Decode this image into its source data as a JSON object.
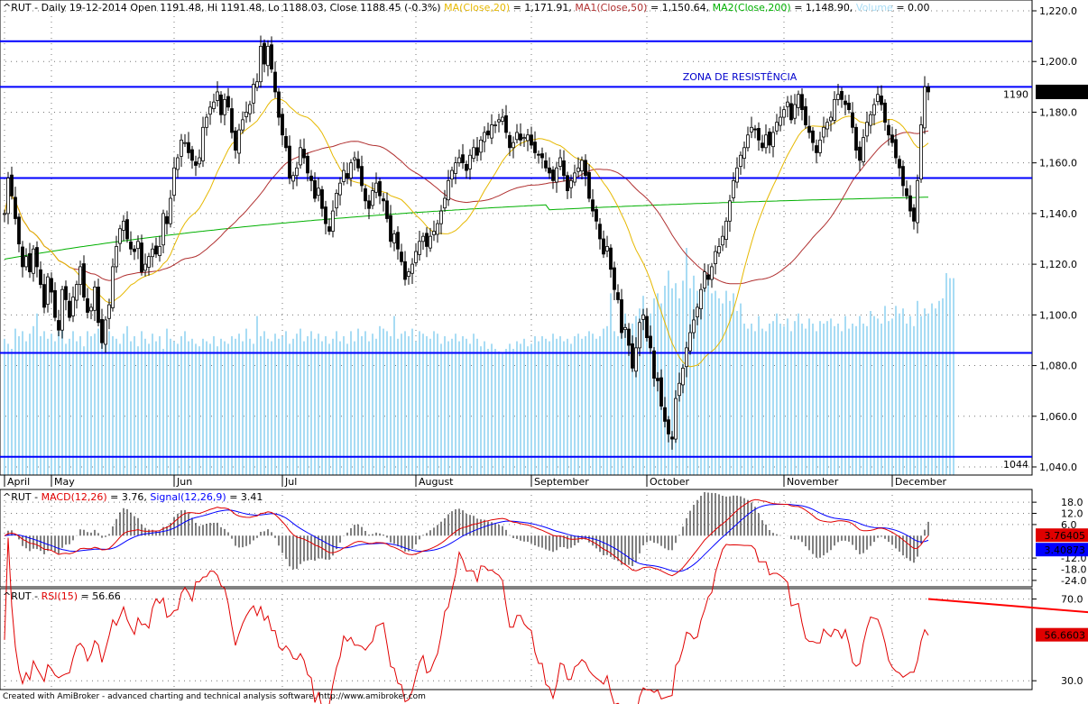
{
  "chart_data": [
    {
      "type": "candlestick",
      "title_parts": {
        "symbol_line": "^RUT - Daily 19-12-2014 Open 1191.48, Hi 1191.48, Lo 1188.03, Close 1188.45 (-0.3%)",
        "ma20_label": "MA(Close,20)",
        "ma20_value": "= 1,171.91,",
        "ma50_label": "MA1(Close,50)",
        "ma50_value": "= 1,150.64,",
        "ma200_label": "MA2(Close,200)",
        "ma200_value": "= 1,148.90,",
        "volume_label": "Volume",
        "volume_value": "= 0.00"
      },
      "colors": {
        "ma20": "#e6b800",
        "ma50": "#b03030",
        "ma200": "#00b000",
        "volume": "#a8dcf4",
        "lines": "#0000ff",
        "annotation": "#0000cc"
      },
      "ylim": [
        1040,
        1220
      ],
      "y_ticks": [
        "1,220.0",
        "1,200.0",
        "1,180.0",
        "1,160.0",
        "1,140.0",
        "1,120.0",
        "1,100.0",
        "1,080.0",
        "1,060.0",
        "1,040.0"
      ],
      "y_tick_values": [
        1220,
        1200,
        1180,
        1160,
        1140,
        1120,
        1100,
        1080,
        1060,
        1040
      ],
      "months": [
        {
          "label": "April",
          "i": 0
        },
        {
          "label": "May",
          "i": 13
        },
        {
          "label": "Jun",
          "i": 47
        },
        {
          "label": "Jul",
          "i": 77
        },
        {
          "label": "August",
          "i": 114
        },
        {
          "label": "September",
          "i": 146
        },
        {
          "label": "October",
          "i": 178
        },
        {
          "label": "November",
          "i": 216
        },
        {
          "label": "December",
          "i": 246
        }
      ],
      "horizontal_lines": [
        1208,
        1190,
        1154,
        1085,
        1044
      ],
      "line_labels": [
        {
          "value": 1190,
          "text": "1190"
        },
        {
          "value": 1044,
          "text": "1044"
        }
      ],
      "annotation": "ZONA DE RESISTÊNCIA",
      "last_price": "1,188.45",
      "closes": [
        1140,
        1154,
        1147,
        1138,
        1128,
        1119,
        1123,
        1117,
        1126,
        1119,
        1112,
        1103,
        1115,
        1109,
        1099,
        1094,
        1110,
        1106,
        1099,
        1107,
        1112,
        1119,
        1107,
        1101,
        1103,
        1111,
        1097,
        1089,
        1098,
        1104,
        1119,
        1127,
        1134,
        1137,
        1130,
        1126,
        1125,
        1129,
        1117,
        1120,
        1123,
        1126,
        1124,
        1127,
        1140,
        1136,
        1146,
        1158,
        1162,
        1169,
        1168,
        1164,
        1161,
        1159,
        1162,
        1174,
        1178,
        1182,
        1184,
        1188,
        1179,
        1185,
        1182,
        1172,
        1165,
        1173,
        1177,
        1180,
        1183,
        1191,
        1192,
        1206,
        1199,
        1206,
        1197,
        1188,
        1178,
        1171,
        1166,
        1154,
        1155,
        1158,
        1166,
        1162,
        1156,
        1153,
        1146,
        1150,
        1142,
        1136,
        1133,
        1141,
        1148,
        1152,
        1157,
        1154,
        1160,
        1162,
        1158,
        1151,
        1145,
        1142,
        1149,
        1152,
        1147,
        1145,
        1138,
        1129,
        1132,
        1126,
        1121,
        1114,
        1117,
        1120,
        1125,
        1129,
        1131,
        1127,
        1131,
        1133,
        1136,
        1141,
        1146,
        1153,
        1157,
        1160,
        1162,
        1160,
        1157,
        1163,
        1166,
        1163,
        1169,
        1172,
        1171,
        1175,
        1175,
        1177,
        1178,
        1172,
        1166,
        1168,
        1172,
        1169,
        1170,
        1171,
        1167,
        1164,
        1163,
        1162,
        1158,
        1156,
        1153,
        1158,
        1162,
        1155,
        1149,
        1153,
        1156,
        1158,
        1161,
        1155,
        1146,
        1141,
        1137,
        1130,
        1124,
        1127,
        1118,
        1110,
        1106,
        1093,
        1095,
        1088,
        1079,
        1087,
        1097,
        1100,
        1091,
        1087,
        1075,
        1074,
        1064,
        1058,
        1053,
        1051,
        1067,
        1073,
        1079,
        1087,
        1093,
        1098,
        1103,
        1110,
        1117,
        1114,
        1119,
        1125,
        1127,
        1131,
        1137,
        1145,
        1153,
        1158,
        1163,
        1166,
        1171,
        1174,
        1173,
        1169,
        1166,
        1171,
        1167,
        1172,
        1176,
        1178,
        1181,
        1184,
        1177,
        1183,
        1187,
        1181,
        1175,
        1172,
        1168,
        1164,
        1169,
        1174,
        1176,
        1178,
        1185,
        1187,
        1185,
        1183,
        1181,
        1174,
        1165,
        1161,
        1170,
        1176,
        1179,
        1183,
        1187,
        1183,
        1176,
        1171,
        1168,
        1162,
        1158,
        1151,
        1147,
        1141,
        1137,
        1153,
        1175,
        1190,
        1188
      ],
      "volume_values": [
        0.54,
        0.52,
        0.5,
        0.58,
        0.55,
        0.57,
        0.53,
        0.56,
        0.59,
        0.64,
        0.55,
        0.57,
        0.54,
        0.56,
        0.53,
        0.57,
        0.61,
        0.52,
        0.54,
        0.57,
        0.53,
        0.55,
        0.51,
        0.57,
        0.55,
        0.56,
        0.58,
        0.54,
        0.53,
        0.57,
        0.55,
        0.54,
        0.52,
        0.56,
        0.59,
        0.53,
        0.55,
        0.51,
        0.57,
        0.54,
        0.52,
        0.56,
        0.53,
        0.55,
        0.5,
        0.58,
        0.54,
        0.53,
        0.52,
        0.55,
        0.57,
        0.53,
        0.54,
        0.52,
        0.51,
        0.54,
        0.53,
        0.52,
        0.55,
        0.51,
        0.54,
        0.53,
        0.52,
        0.55,
        0.54,
        0.56,
        0.53,
        0.58,
        0.54,
        0.52,
        0.63,
        0.55,
        0.57,
        0.54,
        0.53,
        0.56,
        0.54,
        0.55,
        0.57,
        0.52,
        0.54,
        0.56,
        0.58,
        0.53,
        0.55,
        0.57,
        0.54,
        0.56,
        0.53,
        0.55,
        0.52,
        0.54,
        0.57,
        0.53,
        0.55,
        0.52,
        0.57,
        0.53,
        0.58,
        0.55,
        0.57,
        0.53,
        0.56,
        0.54,
        0.59,
        0.58,
        0.57,
        0.55,
        0.63,
        0.54,
        0.56,
        0.57,
        0.55,
        0.58,
        0.53,
        0.57,
        0.56,
        0.55,
        0.54,
        0.57,
        0.56,
        0.52,
        0.55,
        0.53,
        0.54,
        0.56,
        0.53,
        0.55,
        0.54,
        0.52,
        0.56,
        0.54,
        0.51,
        0.53,
        0.5,
        0.52,
        0.5,
        0.49,
        0.48,
        0.5,
        0.52,
        0.5,
        0.53,
        0.52,
        0.54,
        0.51,
        0.52,
        0.55,
        0.53,
        0.55,
        0.54,
        0.53,
        0.56,
        0.54,
        0.55,
        0.53,
        0.54,
        0.52,
        0.55,
        0.56,
        0.54,
        0.55,
        0.57,
        0.56,
        0.54,
        0.55,
        0.58,
        0.59,
        0.72,
        0.57,
        0.55,
        0.58,
        0.64,
        0.56,
        0.6,
        0.63,
        0.66,
        0.71,
        0.62,
        0.64,
        0.7,
        0.72,
        0.68,
        0.75,
        0.81,
        0.74,
        0.76,
        0.7,
        0.77,
        0.9,
        0.74,
        0.79,
        0.73,
        0.71,
        0.75,
        0.77,
        0.72,
        0.73,
        0.7,
        0.68,
        0.73,
        0.69,
        0.72,
        0.65,
        0.68,
        0.6,
        0.58,
        0.6,
        0.57,
        0.63,
        0.58,
        0.57,
        0.6,
        0.61,
        0.64,
        0.6,
        0.59,
        0.62,
        0.57,
        0.61,
        0.64,
        0.6,
        0.58,
        0.62,
        0.6,
        0.57,
        0.61,
        0.6,
        0.61,
        0.62,
        0.59,
        0.6,
        0.57,
        0.63,
        0.58,
        0.6,
        0.59,
        0.63,
        0.6,
        0.59,
        0.65,
        0.63,
        0.62,
        0.6,
        0.67,
        0.61,
        0.62,
        0.67,
        0.64,
        0.66,
        0.6,
        0.63,
        0.59,
        0.69,
        0.63,
        0.66,
        0.64,
        0.68,
        0.66,
        0.69,
        0.7,
        0.8,
        0.78,
        0.78
      ]
    },
    {
      "type": "line",
      "label": "^RUT - MACD(12,26) = 3.76, Signal(12,26,9) = 3.41",
      "label_parts": {
        "prefix": "^RUT - ",
        "macd": "MACD(12,26)",
        "macd_value": " = 3.76, ",
        "signal": "Signal(12,26,9)",
        "signal_value": " = 3.41"
      },
      "ylim": [
        -26,
        20
      ],
      "y_ticks": [
        "18.0",
        "12.0",
        "6.0",
        "-12.0",
        "-18.0",
        "-24.0"
      ],
      "y_tick_values": [
        18,
        12,
        6,
        -12,
        -18,
        -24
      ],
      "last_macd": "3.76405",
      "last_signal": "3.40873",
      "colors": {
        "macd": "#e00000",
        "signal": "#0000ff"
      }
    },
    {
      "type": "line",
      "label": "^RUT - RSI(15) = 56.66",
      "label_parts": {
        "prefix": "^RUT - ",
        "rsi": "RSI(15)",
        "rsi_value": " = 56.66"
      },
      "ylim": [
        27,
        72
      ],
      "y_ticks": [
        "70.0",
        "30.0"
      ],
      "y_tick_values": [
        70,
        30
      ],
      "last_rsi": "56.6603",
      "trendline": {
        "x": [
          256,
          304
        ],
        "y": [
          70,
          63
        ]
      },
      "colors": {
        "rsi": "#e00000",
        "trendline": "#ff0000"
      }
    }
  ],
  "footer": "Created with AmiBroker - advanced charting and technical analysis software. http://www.amibroker.com"
}
